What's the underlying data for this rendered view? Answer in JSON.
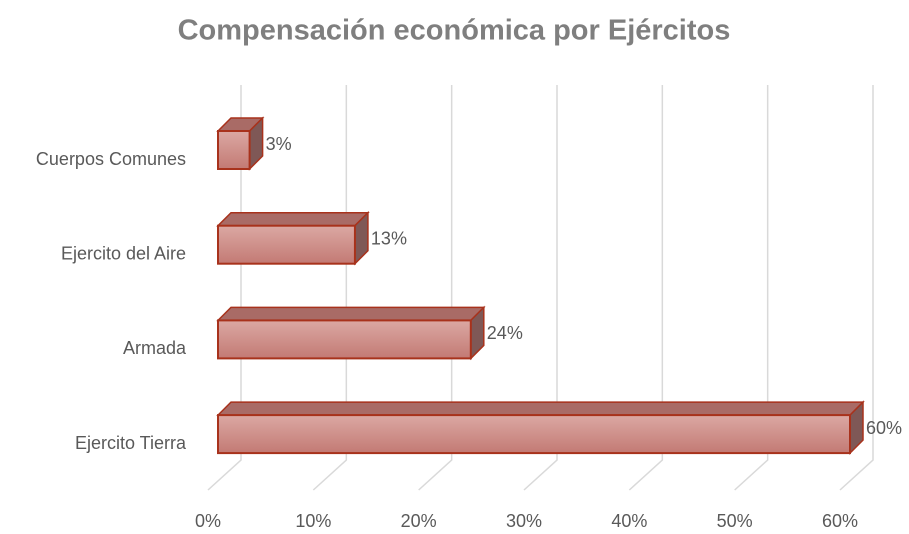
{
  "chart_data": {
    "type": "bar3d_horizontal",
    "title": "Compensación económica por Ejércitos",
    "categories": [
      "Cuerpos Comunes",
      "Ejercito del Aire",
      "Armada",
      "Ejercito Tierra"
    ],
    "values": [
      3,
      13,
      24,
      60
    ],
    "value_labels": [
      "3%",
      "13%",
      "24%",
      "60%"
    ],
    "color": "#c9827c",
    "xlim": [
      0,
      60
    ],
    "xticks": [
      {
        "value": 0,
        "label": "0%"
      },
      {
        "value": 10,
        "label": "10%"
      },
      {
        "value": 20,
        "label": "20%"
      },
      {
        "value": 30,
        "label": "30%"
      },
      {
        "value": 40,
        "label": "40%"
      },
      {
        "value": 50,
        "label": "50%"
      },
      {
        "value": 60,
        "label": "60%"
      }
    ],
    "grid": true
  }
}
